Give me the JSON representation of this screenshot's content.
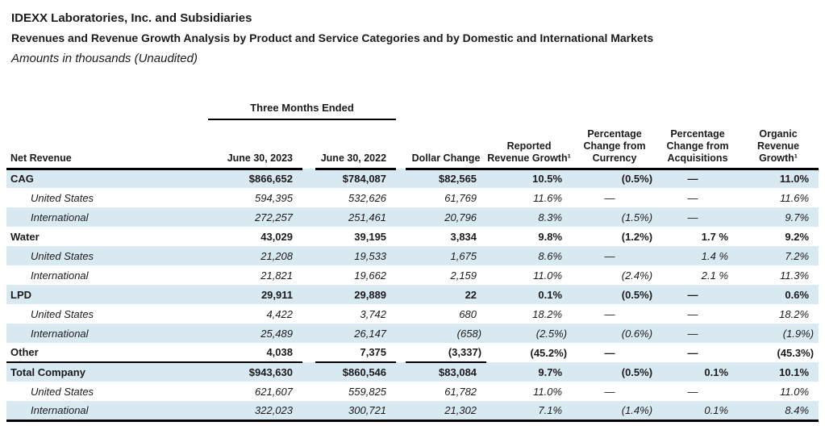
{
  "header": {
    "title": "IDEXX Laboratories, Inc. and Subsidiaries",
    "subtitle": "Revenues and Revenue Growth Analysis by Product and Service Categories and by Domestic and International Markets",
    "note": "Amounts in thousands (Unaudited)"
  },
  "table": {
    "group_header": "Three Months Ended",
    "columns": {
      "label": "Net Revenue",
      "jun_2023": "June 30, 2023",
      "jun_2022": "June 30, 2022",
      "dollar_change": "Dollar Change",
      "reported_growth": "Reported Revenue Growth¹",
      "currency_change": "Percentage Change from Currency",
      "acquisitions_change": "Percentage Change from Acquisitions",
      "organic_growth": "Organic Revenue Growth¹"
    },
    "rows": [
      {
        "label": "CAG",
        "style": "category",
        "shaded": true,
        "rule_below": false,
        "values": [
          "$866,652",
          "$784,087",
          "$82,565",
          "10.5%",
          "(0.5%)",
          "—",
          "11.0%"
        ]
      },
      {
        "label": "United States",
        "style": "sub",
        "shaded": false,
        "rule_below": false,
        "values": [
          "594,395",
          "532,626",
          "61,769",
          "11.6%",
          "—",
          "—",
          "11.6%"
        ]
      },
      {
        "label": "International",
        "style": "sub",
        "shaded": true,
        "rule_below": false,
        "values": [
          "272,257",
          "251,461",
          "20,796",
          "8.3%",
          "(1.5%)",
          "—",
          "9.7%"
        ]
      },
      {
        "label": "Water",
        "style": "category",
        "shaded": false,
        "rule_below": false,
        "values": [
          "43,029",
          "39,195",
          "3,834",
          "9.8%",
          "(1.2%)",
          "1.7 %",
          "9.2%"
        ]
      },
      {
        "label": "United States",
        "style": "sub",
        "shaded": true,
        "rule_below": false,
        "values": [
          "21,208",
          "19,533",
          "1,675",
          "8.6%",
          "—",
          "1.4 %",
          "7.2%"
        ]
      },
      {
        "label": "International",
        "style": "sub",
        "shaded": false,
        "rule_below": false,
        "values": [
          "21,821",
          "19,662",
          "2,159",
          "11.0%",
          "(2.4%)",
          "2.1 %",
          "11.3%"
        ]
      },
      {
        "label": "LPD",
        "style": "category",
        "shaded": true,
        "rule_below": false,
        "values": [
          "29,911",
          "29,889",
          "22",
          "0.1%",
          "(0.5%)",
          "—",
          "0.6%"
        ]
      },
      {
        "label": "United States",
        "style": "sub",
        "shaded": false,
        "rule_below": false,
        "values": [
          "4,422",
          "3,742",
          "680",
          "18.2%",
          "—",
          "—",
          "18.2%"
        ]
      },
      {
        "label": "International",
        "style": "sub",
        "shaded": true,
        "rule_below": false,
        "values": [
          "25,489",
          "26,147",
          "(658)",
          "(2.5%)",
          "(0.6%)",
          "—",
          "(1.9%)"
        ]
      },
      {
        "label": "Other",
        "style": "category",
        "shaded": false,
        "rule_below": true,
        "values": [
          "4,038",
          "7,375",
          "(3,337)",
          "(45.2%)",
          "—",
          "—",
          "(45.3%)"
        ]
      },
      {
        "label": "Total Company",
        "style": "category",
        "shaded": true,
        "rule_below": false,
        "values": [
          "$943,630",
          "$860,546",
          "$83,084",
          "9.7%",
          "(0.5%)",
          "0.1%",
          "10.1%"
        ]
      },
      {
        "label": "United States",
        "style": "sub",
        "shaded": false,
        "rule_below": false,
        "values": [
          "621,607",
          "559,825",
          "61,782",
          "11.0%",
          "—",
          "—",
          "11.0%"
        ]
      },
      {
        "label": "International",
        "style": "sub",
        "shaded": true,
        "rule_below": false,
        "values": [
          "322,023",
          "300,721",
          "21,302",
          "7.1%",
          "(1.4%)",
          "0.1%",
          "8.4%"
        ]
      }
    ],
    "colors": {
      "row_shade": "#d9e9f2",
      "rule": "#000000",
      "text": "#1b1b1b"
    }
  }
}
